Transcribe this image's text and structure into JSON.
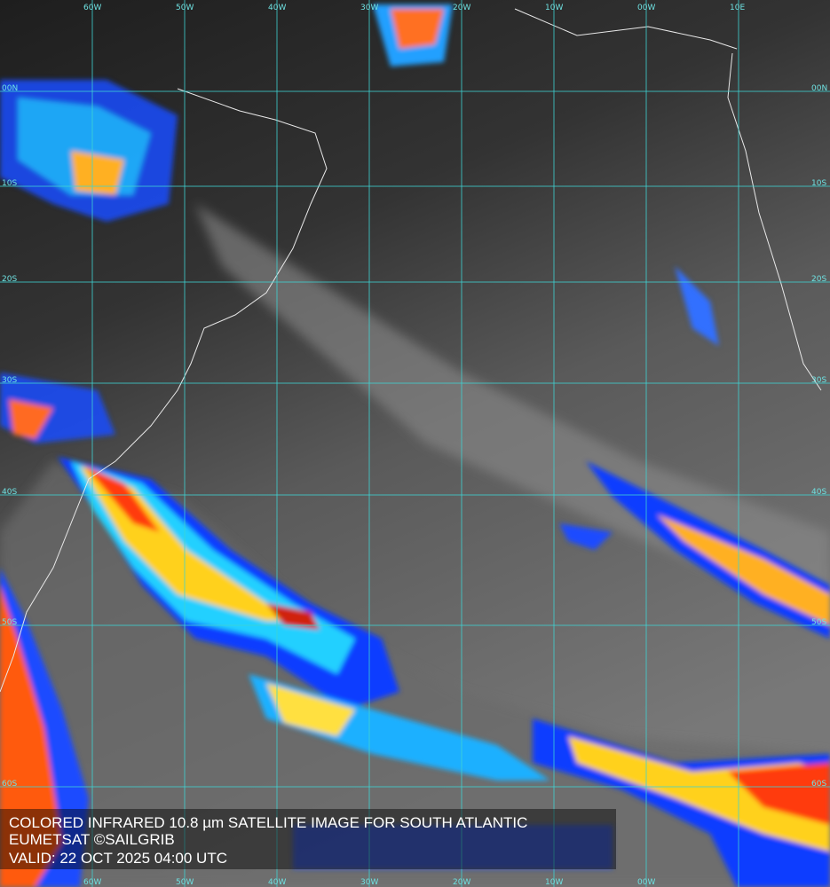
{
  "lon_labels": [
    "60W",
    "50W",
    "40W",
    "30W",
    "20W",
    "10W",
    "00W",
    "10E"
  ],
  "lat_labels": [
    "00N",
    "10S",
    "20S",
    "30S",
    "40S",
    "50S",
    "60S"
  ],
  "caption": {
    "title": "COLORED INFRARED 10.8 µm SATELLITE IMAGE FOR SOUTH ATLANTIC",
    "source": "EUMETSAT ©SAILGRIB",
    "valid": "VALID:  22 OCT 2025 04:00 UTC"
  }
}
